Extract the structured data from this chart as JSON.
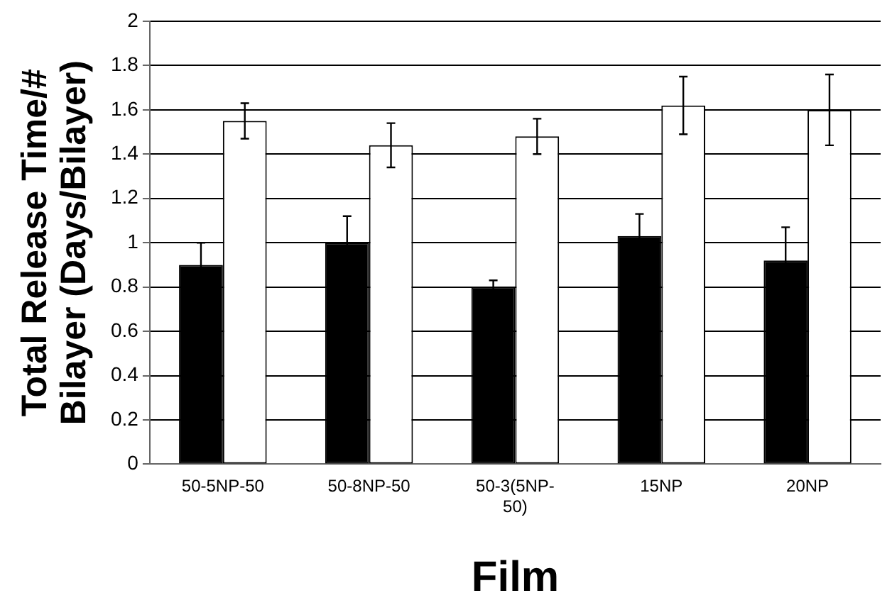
{
  "chart_data": {
    "type": "bar",
    "xlabel": "Film",
    "ylabel": "Total Release Time/#\nBilayer (Days/Bilayer)",
    "categories": [
      "50-5NP-50",
      "50-8NP-50",
      "50-3(5NP-50)",
      "15NP",
      "20NP"
    ],
    "series": [
      {
        "color": "#000000",
        "values": [
          0.9,
          1.0,
          0.8,
          1.03,
          0.92
        ],
        "errors": [
          0.1,
          0.12,
          0.03,
          0.1,
          0.15
        ]
      },
      {
        "color": "#ffffff",
        "values": [
          1.55,
          1.44,
          1.48,
          1.62,
          1.6
        ],
        "errors": [
          0.08,
          0.1,
          0.08,
          0.13,
          0.16
        ]
      }
    ],
    "ylim": [
      0,
      2
    ],
    "yticks": [
      0,
      0.2,
      0.4,
      0.6,
      0.8,
      1,
      1.2,
      1.4,
      1.6,
      1.8,
      2
    ],
    "grid": "y",
    "legend": false
  }
}
